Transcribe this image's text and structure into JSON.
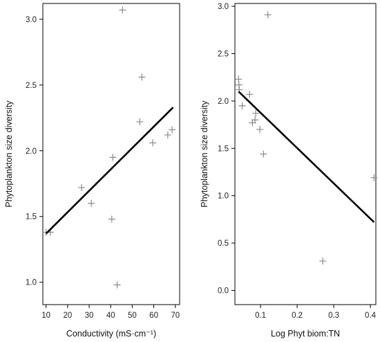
{
  "chart_data": [
    {
      "type": "scatter",
      "xlabel": "Conductivity (mS·cm⁻¹)",
      "ylabel": "Phytoplankton size diversity",
      "xlim": [
        8.5,
        72
      ],
      "ylim": [
        0.83,
        3.12
      ],
      "xticks": [
        "10",
        "20",
        "30",
        "40",
        "50",
        "60",
        "70"
      ],
      "yticks": [
        "1.0",
        "1.5",
        "2.0",
        "2.5",
        "3.0"
      ],
      "points": [
        {
          "x": 10,
          "y": 1.38
        },
        {
          "x": 12,
          "y": 1.38
        },
        {
          "x": 26.5,
          "y": 1.72
        },
        {
          "x": 31,
          "y": 1.6
        },
        {
          "x": 40.5,
          "y": 1.48
        },
        {
          "x": 41,
          "y": 1.95
        },
        {
          "x": 43,
          "y": 0.98
        },
        {
          "x": 45.5,
          "y": 3.07
        },
        {
          "x": 53.5,
          "y": 2.22
        },
        {
          "x": 54.5,
          "y": 2.56
        },
        {
          "x": 59.5,
          "y": 2.06
        },
        {
          "x": 66.5,
          "y": 2.12
        },
        {
          "x": 68.5,
          "y": 2.16
        }
      ],
      "fit_line": {
        "x": [
          10,
          69
        ],
        "y": [
          1.37,
          2.33
        ]
      },
      "grid": false,
      "marker": "+",
      "point_color": "#8a8a8a",
      "line_color": "#000000"
    },
    {
      "type": "scatter",
      "xlabel": "Log Phyt biom:TN",
      "ylabel": "Phytoplankton size diversity",
      "xlim": [
        0.03,
        0.415
      ],
      "ylim": [
        -0.15,
        3.03
      ],
      "xticks": [
        "0.1",
        "0.2",
        "0.3",
        "0.4"
      ],
      "yticks": [
        "0.0",
        "0.5",
        "1.0",
        "1.5",
        "2.0",
        "2.5",
        "3.0"
      ],
      "points": [
        {
          "x": 0.04,
          "y": 2.23
        },
        {
          "x": 0.041,
          "y": 2.17
        },
        {
          "x": 0.042,
          "y": 2.12
        },
        {
          "x": 0.05,
          "y": 1.95
        },
        {
          "x": 0.07,
          "y": 2.07
        },
        {
          "x": 0.078,
          "y": 1.77
        },
        {
          "x": 0.085,
          "y": 1.8
        },
        {
          "x": 0.087,
          "y": 1.87
        },
        {
          "x": 0.098,
          "y": 1.7
        },
        {
          "x": 0.108,
          "y": 1.44
        },
        {
          "x": 0.12,
          "y": 2.91
        },
        {
          "x": 0.27,
          "y": 0.31
        },
        {
          "x": 0.41,
          "y": 1.19
        }
      ],
      "fit_line": {
        "x": [
          0.04,
          0.41
        ],
        "y": [
          2.1,
          0.72
        ]
      },
      "grid": false,
      "marker": "+",
      "point_color": "#8a8a8a",
      "line_color": "#000000"
    }
  ]
}
